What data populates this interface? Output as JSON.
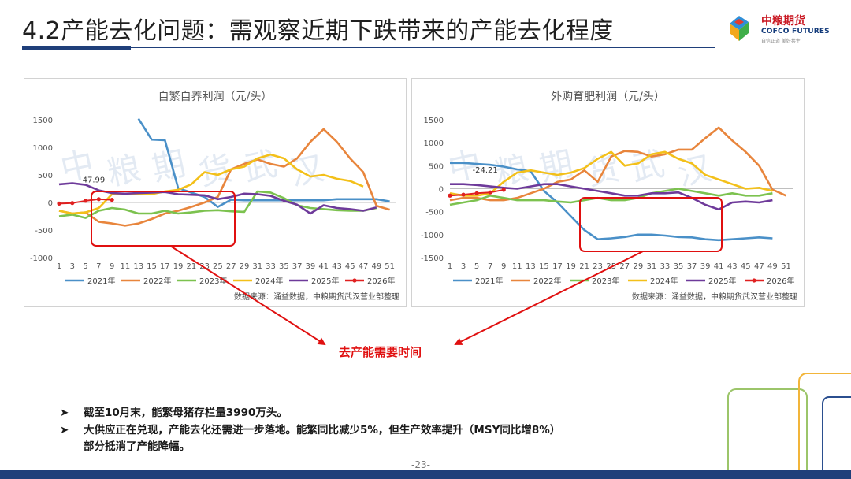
{
  "slide": {
    "title": "4.2产能去化问题：需观察近期下跌带来的产能去化程度",
    "logo": {
      "name": "中粮期货",
      "name_en": "COFCO FUTURES",
      "slogan": "自信正道 美好共生"
    },
    "watermark": "中粮期货武汉",
    "callout": "去产能需要时间",
    "bullets": [
      "截至10月末，能繁母猪存栏量3990万头。",
      "大供应正在兑现，产能去化还需进一步落地。能繁同比减少5%，但生产效率提升（MSY同比增8%）",
      "部分抵消了产能降幅。"
    ],
    "bullet_marker": "➤",
    "page_number": "-23-",
    "colors": {
      "accent_navy": "#1f3f7a",
      "highlight_red": "#e01010"
    }
  },
  "chart_data": [
    {
      "type": "line",
      "title": "自繁自养利润（元/头）",
      "source": "数据来源：涌益数据，中粮期货武汉营业部整理",
      "x": [
        1,
        3,
        5,
        7,
        9,
        11,
        13,
        15,
        17,
        19,
        21,
        23,
        25,
        27,
        29,
        31,
        33,
        35,
        37,
        39,
        41,
        43,
        45,
        47,
        49,
        51
      ],
      "x_ticks": [
        "1",
        "3",
        "5",
        "7",
        "9",
        "11",
        "13",
        "15",
        "17",
        "19",
        "21",
        "23",
        "25",
        "27",
        "29",
        "31",
        "33",
        "35",
        "37",
        "39",
        "41",
        "43",
        "45",
        "47",
        "49",
        "51"
      ],
      "ylim": [
        -1000,
        1500
      ],
      "y_ticks": [
        "1500",
        "1000",
        "500",
        "0",
        "-500",
        "-1000"
      ],
      "annotation": {
        "text": "47.99",
        "x": 6,
        "y": 47.99
      },
      "series": [
        {
          "name": "2021年",
          "color": "#4a90c8",
          "values": [
            null,
            null,
            null,
            null,
            null,
            null,
            1520,
            1140,
            1130,
            260,
            180,
            100,
            -80,
            50,
            40,
            40,
            40,
            40,
            40,
            40,
            40,
            60,
            60,
            60,
            60,
            20
          ]
        },
        {
          "name": "2022年",
          "color": "#e8853c",
          "values": [
            -150,
            -200,
            -180,
            -350,
            -380,
            -420,
            -380,
            -300,
            -200,
            -150,
            -80,
            0,
            100,
            600,
            700,
            780,
            700,
            650,
            800,
            1100,
            1330,
            1100,
            800,
            550,
            -60,
            -130
          ]
        },
        {
          "name": "2023年",
          "color": "#7cc24f",
          "values": [
            -250,
            -220,
            -280,
            -150,
            -100,
            -130,
            -200,
            -200,
            -150,
            -200,
            -180,
            -150,
            -140,
            -160,
            -170,
            200,
            180,
            80,
            -50,
            -100,
            -120,
            -140,
            -150,
            -150,
            -100,
            null
          ]
        },
        {
          "name": "2024年",
          "color": "#f3c01a",
          "values": [
            -150,
            -200,
            -180,
            -100,
            150,
            150,
            160,
            150,
            200,
            230,
            330,
            550,
            500,
            600,
            650,
            800,
            870,
            800,
            600,
            470,
            500,
            430,
            390,
            290,
            null,
            null
          ]
        },
        {
          "name": "2025年",
          "color": "#6e3a9a",
          "values": [
            330,
            350,
            320,
            220,
            170,
            160,
            170,
            180,
            190,
            150,
            140,
            130,
            60,
            100,
            160,
            150,
            120,
            30,
            -40,
            -200,
            -50,
            -100,
            -120,
            -150,
            -90,
            null
          ]
        },
        {
          "name": "2026年",
          "color": "#e02020",
          "values": [
            -20,
            -10,
            30,
            60,
            48,
            null,
            null,
            null,
            null,
            null,
            null,
            null,
            null,
            null,
            null,
            null,
            null,
            null,
            null,
            null,
            null,
            null,
            null,
            null,
            null,
            null
          ]
        }
      ]
    },
    {
      "type": "line",
      "title": "外购育肥利润（元/头）",
      "source": "数据来源：涌益数据，中粮期货武汉营业部整理",
      "x": [
        1,
        3,
        5,
        7,
        9,
        11,
        13,
        15,
        17,
        19,
        21,
        23,
        25,
        27,
        29,
        31,
        33,
        35,
        37,
        39,
        41,
        43,
        45,
        47,
        49,
        51
      ],
      "x_ticks": [
        "1",
        "3",
        "5",
        "7",
        "9",
        "11",
        "13",
        "15",
        "17",
        "19",
        "21",
        "23",
        "25",
        "27",
        "29",
        "31",
        "33",
        "35",
        "37",
        "39",
        "41",
        "43",
        "45",
        "47",
        "49",
        "51"
      ],
      "ylim": [
        -1500,
        1500
      ],
      "y_ticks": [
        "1500",
        "1000",
        "500",
        "0",
        "-500",
        "-1000",
        "-1500"
      ],
      "annotation": {
        "text": "-24.21",
        "x": 6,
        "y": -24.21
      },
      "series": [
        {
          "name": "2021年",
          "color": "#4a90c8",
          "values": [
            560,
            560,
            540,
            520,
            480,
            420,
            380,
            -50,
            -300,
            -600,
            -900,
            -1100,
            -1080,
            -1050,
            -1000,
            -1000,
            -1020,
            -1050,
            -1060,
            -1100,
            -1120,
            -1100,
            -1080,
            -1060,
            -1080,
            null
          ]
        },
        {
          "name": "2022年",
          "color": "#e8853c",
          "values": [
            -250,
            -200,
            -200,
            -250,
            -250,
            -200,
            -100,
            0,
            150,
            200,
            400,
            150,
            700,
            820,
            800,
            700,
            750,
            850,
            850,
            1100,
            1330,
            1050,
            800,
            500,
            -20,
            -150
          ]
        },
        {
          "name": "2023年",
          "color": "#7cc24f",
          "values": [
            -350,
            -300,
            -250,
            -150,
            -200,
            -250,
            -250,
            -250,
            -280,
            -300,
            -250,
            -200,
            -250,
            -250,
            -200,
            -100,
            -50,
            0,
            -50,
            -100,
            -150,
            -100,
            -150,
            -150,
            -100,
            null
          ]
        },
        {
          "name": "2024年",
          "color": "#f3c01a",
          "values": [
            -100,
            -150,
            -150,
            -100,
            150,
            350,
            400,
            350,
            300,
            350,
            450,
            650,
            800,
            500,
            550,
            750,
            800,
            650,
            550,
            300,
            200,
            100,
            0,
            20,
            -50,
            null
          ]
        },
        {
          "name": "2025年",
          "color": "#6e3a9a",
          "values": [
            100,
            100,
            80,
            50,
            20,
            0,
            50,
            100,
            100,
            50,
            0,
            -50,
            -100,
            -150,
            -150,
            -100,
            -100,
            -80,
            -200,
            -350,
            -450,
            -300,
            -280,
            -300,
            -250,
            null
          ]
        },
        {
          "name": "2026年",
          "color": "#e02020",
          "values": [
            -150,
            -130,
            -100,
            -80,
            -24,
            null,
            null,
            null,
            null,
            null,
            null,
            null,
            null,
            null,
            null,
            null,
            null,
            null,
            null,
            null,
            null,
            null,
            null,
            null,
            null,
            null
          ]
        }
      ]
    }
  ]
}
